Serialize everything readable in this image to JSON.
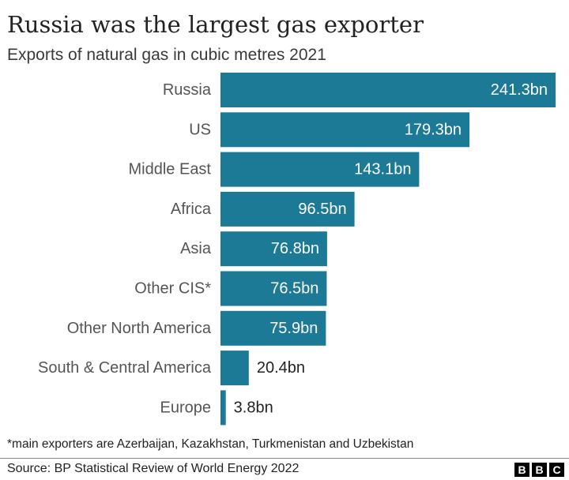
{
  "header": {
    "title": "Russia was the largest gas exporter",
    "subtitle": "Exports of natural gas in cubic metres 2021"
  },
  "footer": {
    "footnote": "*main exporters are Azerbaijan, Kazakhstan, Turkmenistan and Uzbekistan",
    "source": "Source: BP Statistical Review of World Energy 2022",
    "logo_letters": [
      "B",
      "B",
      "C"
    ]
  },
  "colors": {
    "bar": "#1c7a96",
    "label_inside": "#ffffff",
    "label_outside": "#222222",
    "category_label": "#555555"
  },
  "chart_data": {
    "type": "bar",
    "orientation": "horizontal",
    "categories": [
      "Russia",
      "US",
      "Middle East",
      "Africa",
      "Asia",
      "Other CIS*",
      "Other North America",
      "South & Central America",
      "Europe"
    ],
    "values": [
      241.3,
      179.3,
      143.1,
      96.5,
      76.8,
      76.5,
      75.9,
      20.4,
      3.8
    ],
    "value_labels": [
      "241.3bn",
      "179.3bn",
      "143.1bn",
      "96.5bn",
      "76.8bn",
      "76.5bn",
      "75.9bn",
      "20.4bn",
      "3.8bn"
    ],
    "title": "Russia was the largest gas exporter",
    "xlabel": "",
    "ylabel": "",
    "xlim": [
      0,
      241.3
    ],
    "grid": false,
    "legend": "none"
  }
}
